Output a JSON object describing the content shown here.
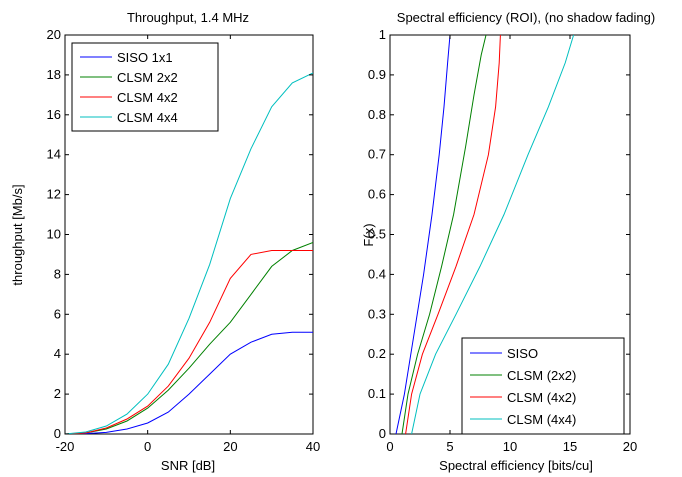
{
  "chart_data": [
    {
      "type": "line",
      "title": "Throughput, 1.4 MHz",
      "xlabel": "SNR [dB]",
      "ylabel": "throughput [Mb/s]",
      "xlim": [
        -20,
        40
      ],
      "ylim": [
        0,
        20
      ],
      "xticks": [
        -20,
        0,
        20,
        40
      ],
      "yticks": [
        0,
        2,
        4,
        6,
        8,
        10,
        12,
        14,
        16,
        18,
        20
      ],
      "grid": false,
      "legend_position": "top-left",
      "series": [
        {
          "name": "SISO 1x1",
          "color": "#0000ff",
          "x": [
            -20,
            -15,
            -10,
            -5,
            0,
            5,
            10,
            15,
            20,
            25,
            30,
            35,
            40
          ],
          "y": [
            0,
            0.02,
            0.08,
            0.25,
            0.55,
            1.1,
            2.0,
            3.0,
            4.0,
            4.6,
            5.0,
            5.1,
            5.1
          ]
        },
        {
          "name": "CLSM 2x2",
          "color": "#008000",
          "x": [
            -20,
            -15,
            -10,
            -5,
            0,
            5,
            10,
            15,
            20,
            25,
            30,
            35,
            40
          ],
          "y": [
            0,
            0.05,
            0.25,
            0.65,
            1.3,
            2.2,
            3.3,
            4.5,
            5.6,
            7.0,
            8.4,
            9.2,
            9.6
          ]
        },
        {
          "name": "CLSM 4x2",
          "color": "#ff0000",
          "x": [
            -20,
            -15,
            -10,
            -5,
            0,
            5,
            10,
            15,
            20,
            25,
            30,
            35,
            40
          ],
          "y": [
            0,
            0.05,
            0.3,
            0.75,
            1.4,
            2.4,
            3.8,
            5.6,
            7.8,
            9.0,
            9.2,
            9.2,
            9.2
          ]
        },
        {
          "name": "CLSM 4x4",
          "color": "#00bfbf",
          "x": [
            -20,
            -15,
            -10,
            -5,
            0,
            5,
            10,
            15,
            20,
            25,
            30,
            35,
            40
          ],
          "y": [
            0,
            0.1,
            0.4,
            1.0,
            2.0,
            3.5,
            5.8,
            8.5,
            11.8,
            14.3,
            16.4,
            17.6,
            18.1
          ]
        }
      ]
    },
    {
      "type": "line",
      "title": "Spectral efficiency (ROI), (no shadow fading)",
      "xlabel": "Spectral efficiency [bits/cu]",
      "ylabel": "F(x)",
      "xlim": [
        0,
        20
      ],
      "ylim": [
        0,
        1
      ],
      "xticks": [
        0,
        5,
        10,
        15,
        20
      ],
      "yticks": [
        0,
        0.1,
        0.2,
        0.3,
        0.4,
        0.5,
        0.6,
        0.7,
        0.8,
        0.9,
        1
      ],
      "grid": false,
      "legend_position": "bottom-right",
      "series": [
        {
          "name": "SISO",
          "color": "#0000ff",
          "x": [
            0.5,
            1.2,
            2.0,
            2.8,
            3.5,
            4.1,
            4.5,
            4.8,
            5.0
          ],
          "y": [
            0,
            0.1,
            0.25,
            0.4,
            0.55,
            0.7,
            0.82,
            0.93,
            1.0
          ]
        },
        {
          "name": "CLSM (2x2)",
          "color": "#008000",
          "x": [
            1.0,
            1.5,
            2.3,
            3.3,
            4.3,
            5.3,
            6.3,
            7.0,
            7.6,
            8.0
          ],
          "y": [
            0,
            0.1,
            0.2,
            0.3,
            0.42,
            0.55,
            0.72,
            0.85,
            0.95,
            1.0
          ]
        },
        {
          "name": "CLSM (4x2)",
          "color": "#ff0000",
          "x": [
            1.3,
            1.8,
            2.7,
            4.0,
            5.5,
            7.0,
            8.2,
            8.8,
            9.1,
            9.2
          ],
          "y": [
            0,
            0.1,
            0.2,
            0.3,
            0.42,
            0.55,
            0.7,
            0.82,
            0.93,
            1.0
          ]
        },
        {
          "name": "CLSM (4x4)",
          "color": "#00bfbf",
          "x": [
            1.8,
            2.5,
            3.8,
            5.5,
            7.5,
            9.5,
            11.5,
            13.2,
            14.6,
            15.3
          ],
          "y": [
            0,
            0.1,
            0.2,
            0.3,
            0.42,
            0.55,
            0.7,
            0.82,
            0.93,
            1.0
          ]
        }
      ]
    }
  ]
}
